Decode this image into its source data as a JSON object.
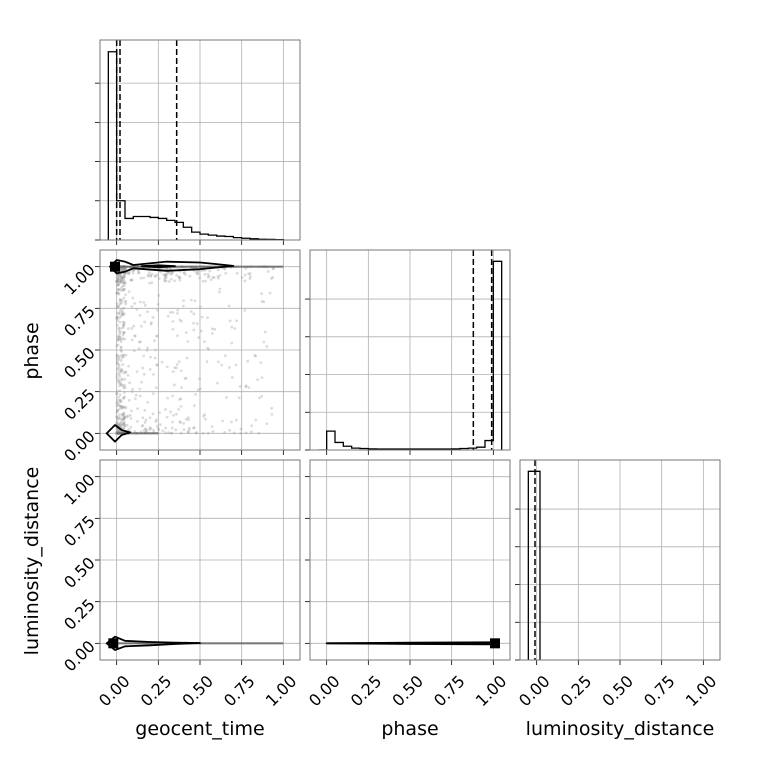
{
  "chart_data": {
    "type": "corner",
    "parameters": [
      "geocent_time",
      "phase",
      "luminosity_distance"
    ],
    "axis_range": [
      -0.1,
      1.1
    ],
    "tick_values": [
      0.0,
      0.25,
      0.5,
      0.75,
      1.0
    ],
    "tick_labels": [
      "0.00",
      "0.25",
      "0.50",
      "0.75",
      "1.00"
    ],
    "grid": true,
    "line_color": "#000000",
    "point_color": "#9a9a9a",
    "marker_color": "#000000",
    "marginals": [
      {
        "parameter": "geocent_time",
        "bin_edges": [
          -0.05,
          0.0,
          0.05,
          0.1,
          0.15,
          0.2,
          0.25,
          0.3,
          0.35,
          0.4,
          0.45,
          0.5,
          0.55,
          0.6,
          0.65,
          0.7,
          0.75,
          0.8,
          0.85,
          0.9,
          0.95,
          1.0
        ],
        "counts": [
          0.96,
          0.2,
          0.11,
          0.12,
          0.12,
          0.115,
          0.11,
          0.1,
          0.09,
          0.065,
          0.04,
          0.03,
          0.025,
          0.02,
          0.018,
          0.012,
          0.009,
          0.006,
          0.004,
          0.003,
          0.002
        ],
        "ymax": 1.02,
        "quantile_lines": [
          0.0,
          0.02,
          0.36
        ]
      },
      {
        "parameter": "phase",
        "bin_edges": [
          -0.05,
          0.0,
          0.05,
          0.1,
          0.15,
          0.2,
          0.25,
          0.3,
          0.35,
          0.4,
          0.45,
          0.5,
          0.55,
          0.6,
          0.65,
          0.7,
          0.75,
          0.8,
          0.85,
          0.9,
          0.95,
          1.0,
          1.05
        ],
        "counts": [
          0.0,
          0.1,
          0.04,
          0.02,
          0.01,
          0.008,
          0.006,
          0.005,
          0.005,
          0.005,
          0.005,
          0.005,
          0.005,
          0.005,
          0.005,
          0.005,
          0.006,
          0.008,
          0.01,
          0.015,
          0.05,
          1.0
        ],
        "ymax": 1.06,
        "quantile_lines": [
          0.88,
          0.99
        ]
      },
      {
        "parameter": "luminosity_distance",
        "bin_edges": [
          -0.05,
          0.0,
          0.02
        ],
        "counts": [
          1.0,
          1.0
        ],
        "ymax": 1.06,
        "quantile_lines": [
          -0.01
        ]
      }
    ],
    "pair_panels": [
      {
        "x": "geocent_time",
        "y": "phase",
        "scatter_seed": 7,
        "scatter_count": 900,
        "marker_point": [
          -0.01,
          1.0
        ],
        "contours": [
          [
            [
              -0.04,
              1.0
            ],
            [
              0.0,
              1.04
            ],
            [
              0.05,
              1.03
            ],
            [
              0.1,
              1.01
            ],
            [
              0.3,
              1.03
            ],
            [
              0.5,
              1.025
            ],
            [
              0.6,
              1.015
            ],
            [
              0.7,
              1.005
            ],
            [
              0.6,
              0.995
            ],
            [
              0.5,
              0.985
            ],
            [
              0.3,
              0.975
            ],
            [
              0.1,
              0.99
            ],
            [
              0.05,
              0.97
            ],
            [
              0.0,
              0.96
            ],
            [
              -0.04,
              1.0
            ]
          ],
          [
            [
              0.15,
              1.003
            ],
            [
              0.25,
              1.008
            ],
            [
              0.35,
              1.003
            ],
            [
              0.25,
              0.997
            ],
            [
              0.15,
              1.003
            ]
          ],
          [
            [
              -0.06,
              0.0
            ],
            [
              -0.01,
              0.05
            ],
            [
              0.03,
              0.02
            ],
            [
              0.08,
              0.005
            ],
            [
              0.03,
              -0.01
            ],
            [
              -0.01,
              -0.05
            ],
            [
              -0.06,
              0.0
            ]
          ]
        ],
        "bands": [
          [
            0.0,
            1.0,
            1.0,
            1.0
          ],
          [
            0.0,
            0.0,
            0.25,
            0.0
          ]
        ]
      },
      {
        "x": "geocent_time",
        "y": "luminosity_distance",
        "scatter_seed": 11,
        "scatter_count": 0,
        "marker_point": [
          -0.02,
          0.0
        ],
        "contours": [
          [
            [
              -0.06,
              0.0
            ],
            [
              -0.01,
              0.04
            ],
            [
              0.05,
              0.015
            ],
            [
              0.2,
              0.008
            ],
            [
              0.35,
              0.004
            ],
            [
              0.5,
              0.002
            ],
            [
              0.35,
              -0.004
            ],
            [
              0.2,
              -0.012
            ],
            [
              0.05,
              -0.018
            ],
            [
              -0.01,
              -0.04
            ],
            [
              -0.06,
              0.0
            ]
          ]
        ],
        "bands": [
          [
            0.0,
            0.0,
            1.0,
            0.0
          ]
        ]
      },
      {
        "x": "phase",
        "y": "luminosity_distance",
        "scatter_seed": 13,
        "scatter_count": 0,
        "marker_point": [
          1.01,
          0.0
        ],
        "contours": [
          [
            [
              0.0,
              0.0
            ],
            [
              0.5,
              0.004
            ],
            [
              1.0,
              0.006
            ],
            [
              1.0,
              -0.006
            ],
            [
              0.5,
              -0.004
            ],
            [
              0.0,
              0.0
            ]
          ]
        ],
        "bands": [
          [
            0.0,
            0.0,
            1.0,
            0.0
          ]
        ]
      }
    ]
  }
}
